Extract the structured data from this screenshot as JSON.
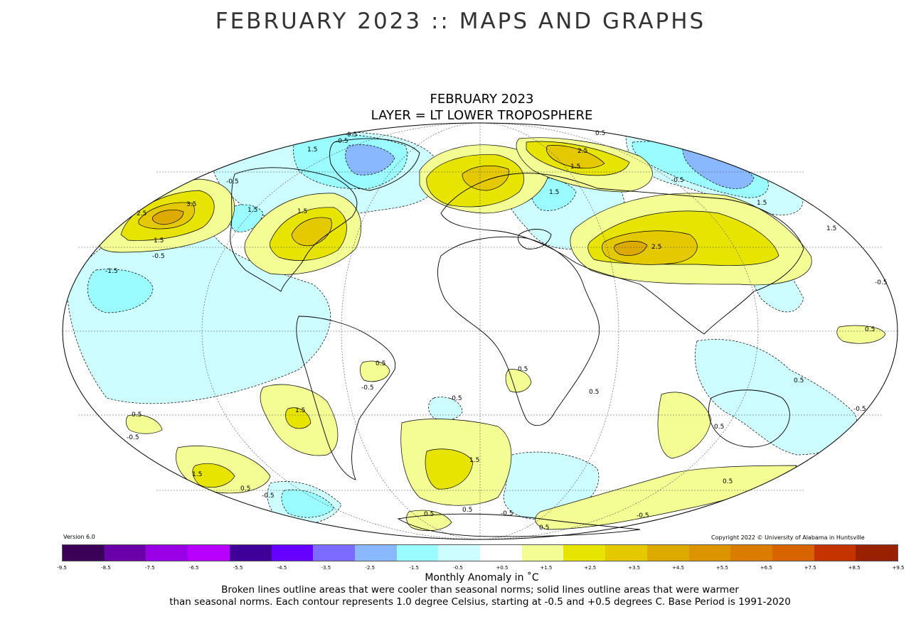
{
  "page": {
    "title": "FEBRUARY 2023 :: MAPS AND GRAPHS"
  },
  "map": {
    "title_line1": "FEBRUARY 2023",
    "title_line2": "LAYER = LT LOWER TROPOSPHERE",
    "version": "Version 6.0",
    "copyright": "Copyright 2022 © University of Alabama in Huntsville",
    "contour_labels": [
      "0.5",
      "-0.5",
      "1.5",
      "-1.5",
      "2.5",
      "3.5"
    ]
  },
  "legend": {
    "title": "Monthly Anomaly in ˚C",
    "colors": [
      "#3b0058",
      "#6a00a8",
      "#9a00e6",
      "#b800ff",
      "#3e0098",
      "#6600ff",
      "#7b6bff",
      "#8ab8ff",
      "#9afcff",
      "#cdfdff",
      "#ffffff",
      "#f3fd94",
      "#e6e400",
      "#e4c800",
      "#ddab00",
      "#dc9400",
      "#d97c00",
      "#d86400",
      "#c43300",
      "#992100"
    ],
    "ticks": [
      "-9.5",
      "-8.5",
      "-7.5",
      "-6.5",
      "-5.5",
      "-4.5",
      "-3.5",
      "-2.5",
      "-1.5",
      "-0.5",
      "+0.5",
      "+1.5",
      "+2.5",
      "+3.5",
      "+4.5",
      "+5.5",
      "+6.5",
      "+7.5",
      "+8.5",
      "+9.5"
    ]
  },
  "caption": {
    "line1": "Broken lines outline areas that were cooler than seasonal norms; solid lines outline areas that were warmer",
    "line2": "than seasonal norms. Each contour represents 1.0 degree Celsius, starting at -0.5 and +0.5 degrees C. Base Period is 1991-2020"
  }
}
